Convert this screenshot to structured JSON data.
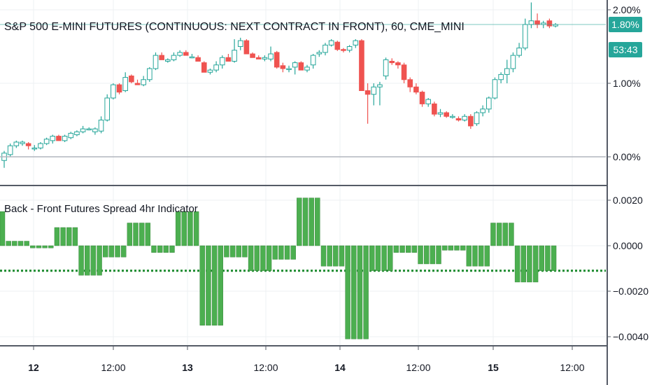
{
  "chart_data": [
    {
      "type": "candlestick",
      "title": "S&P 500 E-MINI FUTURES (CONTINUOUS: NEXT CONTRACT IN FRONT), 60, CME_MINI",
      "y_unit": "%",
      "ylim": [
        -0.15,
        2.05
      ],
      "y_ticks": [
        {
          "value": 2.0,
          "label": "2.00%"
        },
        {
          "value": 1.0,
          "label": "1.00%"
        },
        {
          "value": 0.0,
          "label": "0.00%"
        }
      ],
      "last_value_label": "1.80%",
      "countdown_label": "53:43",
      "last_value": 1.8,
      "colors": {
        "up": "#26a69a",
        "down": "#ef5350",
        "last_line": "#26a69a",
        "zero_line": "#b2b5be"
      },
      "x_labels": [
        {
          "label": "12",
          "bold": true
        },
        {
          "label": "12:00",
          "bold": false
        },
        {
          "label": "13",
          "bold": true
        },
        {
          "label": "12:00",
          "bold": false
        },
        {
          "label": "14",
          "bold": true
        },
        {
          "label": "12:00",
          "bold": false
        },
        {
          "label": "15",
          "bold": true
        },
        {
          "label": "12:00",
          "bold": false
        }
      ],
      "candles": [
        [
          -0.05,
          -0.15,
          0.05,
          0.08
        ],
        [
          0.03,
          0.0,
          0.15,
          0.18
        ],
        [
          0.15,
          0.12,
          0.2,
          0.22
        ],
        [
          0.18,
          0.15,
          0.2,
          0.22
        ],
        [
          0.18,
          0.1,
          0.15,
          0.2
        ],
        [
          0.12,
          0.08,
          0.12,
          0.16
        ],
        [
          0.12,
          0.1,
          0.18,
          0.2
        ],
        [
          0.18,
          0.16,
          0.24,
          0.26
        ],
        [
          0.22,
          0.18,
          0.28,
          0.3
        ],
        [
          0.28,
          0.22,
          0.22,
          0.3
        ],
        [
          0.22,
          0.2,
          0.28,
          0.3
        ],
        [
          0.26,
          0.24,
          0.32,
          0.34
        ],
        [
          0.3,
          0.28,
          0.34,
          0.36
        ],
        [
          0.34,
          0.32,
          0.38,
          0.42
        ],
        [
          0.38,
          0.36,
          0.38,
          0.4
        ],
        [
          0.34,
          0.3,
          0.38,
          0.4
        ],
        [
          0.35,
          0.32,
          0.5,
          0.55
        ],
        [
          0.5,
          0.48,
          0.8,
          0.85
        ],
        [
          0.8,
          0.78,
          0.98,
          1.0
        ],
        [
          0.98,
          0.85,
          0.88,
          1.0
        ],
        [
          0.9,
          0.88,
          1.08,
          1.15
        ],
        [
          1.1,
          1.0,
          1.02,
          1.12
        ],
        [
          1.0,
          0.98,
          0.98,
          1.05
        ],
        [
          0.98,
          0.96,
          1.05,
          1.1
        ],
        [
          1.05,
          1.02,
          1.2,
          1.22
        ],
        [
          1.2,
          1.18,
          1.38,
          1.42
        ],
        [
          1.38,
          1.35,
          1.32,
          1.42
        ],
        [
          1.3,
          1.28,
          1.32,
          1.34
        ],
        [
          1.32,
          1.3,
          1.38,
          1.42
        ],
        [
          1.38,
          1.36,
          1.42,
          1.45
        ],
        [
          1.42,
          1.38,
          1.38,
          1.45
        ],
        [
          1.36,
          1.34,
          1.36,
          1.4
        ],
        [
          1.35,
          1.3,
          1.3,
          1.38
        ],
        [
          1.28,
          1.15,
          1.15,
          1.3
        ],
        [
          1.15,
          1.12,
          1.18,
          1.2
        ],
        [
          1.18,
          1.15,
          1.25,
          1.3
        ],
        [
          1.25,
          1.2,
          1.35,
          1.38
        ],
        [
          1.35,
          1.32,
          1.3,
          1.4
        ],
        [
          1.3,
          1.28,
          1.45,
          1.6
        ],
        [
          1.5,
          1.45,
          1.58,
          1.62
        ],
        [
          1.58,
          1.4,
          1.4,
          1.6
        ],
        [
          1.4,
          1.36,
          1.35,
          1.42
        ],
        [
          1.35,
          1.33,
          1.33,
          1.38
        ],
        [
          1.33,
          1.3,
          1.35,
          1.38
        ],
        [
          1.33,
          1.3,
          1.4,
          1.5
        ],
        [
          1.42,
          1.2,
          1.22,
          1.44
        ],
        [
          1.24,
          1.15,
          1.2,
          1.28
        ],
        [
          1.2,
          1.15,
          1.2,
          1.24
        ],
        [
          1.22,
          1.12,
          1.28,
          1.3
        ],
        [
          1.28,
          1.18,
          1.18,
          1.3
        ],
        [
          1.18,
          1.15,
          1.22,
          1.25
        ],
        [
          1.25,
          1.2,
          1.38,
          1.4
        ],
        [
          1.4,
          1.36,
          1.42,
          1.45
        ],
        [
          1.42,
          1.38,
          1.52,
          1.55
        ],
        [
          1.52,
          1.5,
          1.58,
          1.6
        ],
        [
          1.56,
          1.44,
          1.46,
          1.58
        ],
        [
          1.46,
          1.42,
          1.45,
          1.48
        ],
        [
          1.45,
          1.42,
          1.5,
          1.52
        ],
        [
          1.52,
          1.48,
          1.58,
          1.6
        ],
        [
          1.58,
          0.9,
          0.9,
          1.6
        ],
        [
          0.9,
          0.45,
          0.85,
          1.0
        ],
        [
          0.85,
          0.7,
          0.95,
          1.0
        ],
        [
          0.95,
          0.7,
          0.98,
          1.02
        ],
        [
          1.1,
          1.05,
          1.32,
          1.35
        ],
        [
          1.3,
          1.25,
          1.28,
          1.34
        ],
        [
          1.28,
          1.2,
          1.25,
          1.3
        ],
        [
          1.25,
          1.0,
          1.05,
          1.28
        ],
        [
          1.05,
          0.88,
          0.95,
          1.08
        ],
        [
          0.95,
          0.85,
          0.88,
          1.0
        ],
        [
          0.88,
          0.68,
          0.72,
          0.9
        ],
        [
          0.72,
          0.68,
          0.78,
          0.8
        ],
        [
          0.72,
          0.55,
          0.58,
          0.75
        ],
        [
          0.58,
          0.54,
          0.6,
          0.65
        ],
        [
          0.6,
          0.53,
          0.55,
          0.62
        ],
        [
          0.55,
          0.52,
          0.55,
          0.58
        ],
        [
          0.52,
          0.48,
          0.5,
          0.55
        ],
        [
          0.5,
          0.48,
          0.55,
          0.58
        ],
        [
          0.55,
          0.38,
          0.42,
          0.58
        ],
        [
          0.45,
          0.42,
          0.6,
          0.62
        ],
        [
          0.6,
          0.55,
          0.65,
          0.7
        ],
        [
          0.65,
          0.6,
          0.8,
          0.82
        ],
        [
          0.8,
          0.78,
          1.05,
          1.08
        ],
        [
          1.05,
          1.0,
          1.12,
          1.15
        ],
        [
          1.12,
          1.0,
          1.2,
          1.32
        ],
        [
          1.2,
          1.15,
          1.38,
          1.42
        ],
        [
          1.38,
          1.35,
          1.48,
          1.55
        ],
        [
          1.48,
          1.45,
          1.8,
          1.88
        ],
        [
          1.8,
          1.75,
          1.85,
          2.1
        ],
        [
          1.85,
          1.75,
          1.8,
          1.95
        ],
        [
          1.8,
          1.75,
          1.82,
          1.85
        ],
        [
          1.85,
          1.75,
          1.78,
          1.88
        ],
        [
          1.78,
          1.76,
          1.8,
          1.82
        ]
      ]
    },
    {
      "type": "bar",
      "title": "Back - Front Futures Spread 4hr Indicator",
      "ylim": [
        -0.0042,
        0.0022
      ],
      "y_ticks": [
        {
          "value": 0.002,
          "label": "0.0020"
        },
        {
          "value": 0.0,
          "label": "0.0000"
        },
        {
          "value": -0.002,
          "label": "−0.0020"
        },
        {
          "value": -0.004,
          "label": "−0.0040"
        }
      ],
      "reference_value": -0.0011,
      "colors": {
        "bar": "#4caf50",
        "bar_edge": "#2e7d32",
        "reference_line": "#1b8a2d"
      },
      "values": [
        0.0015,
        0.0002,
        0.0002,
        0.0002,
        0.0002,
        -0.0001,
        -0.0001,
        -0.0001,
        -0.0001,
        0.0008,
        0.0008,
        0.0008,
        0.0008,
        -0.0013,
        -0.0013,
        -0.0013,
        -0.0013,
        -0.0005,
        -0.0005,
        -0.0005,
        -0.0005,
        0.001,
        0.001,
        0.001,
        0.001,
        -0.0003,
        -0.0003,
        -0.0003,
        -0.0003,
        0.0015,
        0.0015,
        0.0015,
        0.0015,
        -0.0035,
        -0.0035,
        -0.0035,
        -0.0035,
        -0.0005,
        -0.0005,
        -0.0005,
        -0.0005,
        -0.0011,
        -0.0011,
        -0.0011,
        -0.0011,
        -0.0006,
        -0.0006,
        -0.0006,
        -0.0006,
        0.0021,
        0.0021,
        0.0021,
        0.0021,
        -0.0009,
        -0.0009,
        -0.0009,
        -0.0009,
        -0.0041,
        -0.0041,
        -0.0041,
        -0.0041,
        -0.0011,
        -0.0011,
        -0.0011,
        -0.0011,
        -0.0003,
        -0.0003,
        -0.0003,
        -0.0003,
        -0.0008,
        -0.0008,
        -0.0008,
        -0.0008,
        -0.0002,
        -0.0002,
        -0.0002,
        -0.0002,
        -0.0009,
        -0.0009,
        -0.0009,
        -0.0009,
        0.001,
        0.001,
        0.001,
        0.001,
        -0.0016,
        -0.0016,
        -0.0016,
        -0.0016,
        -0.0011,
        -0.0011,
        -0.0011
      ]
    }
  ]
}
